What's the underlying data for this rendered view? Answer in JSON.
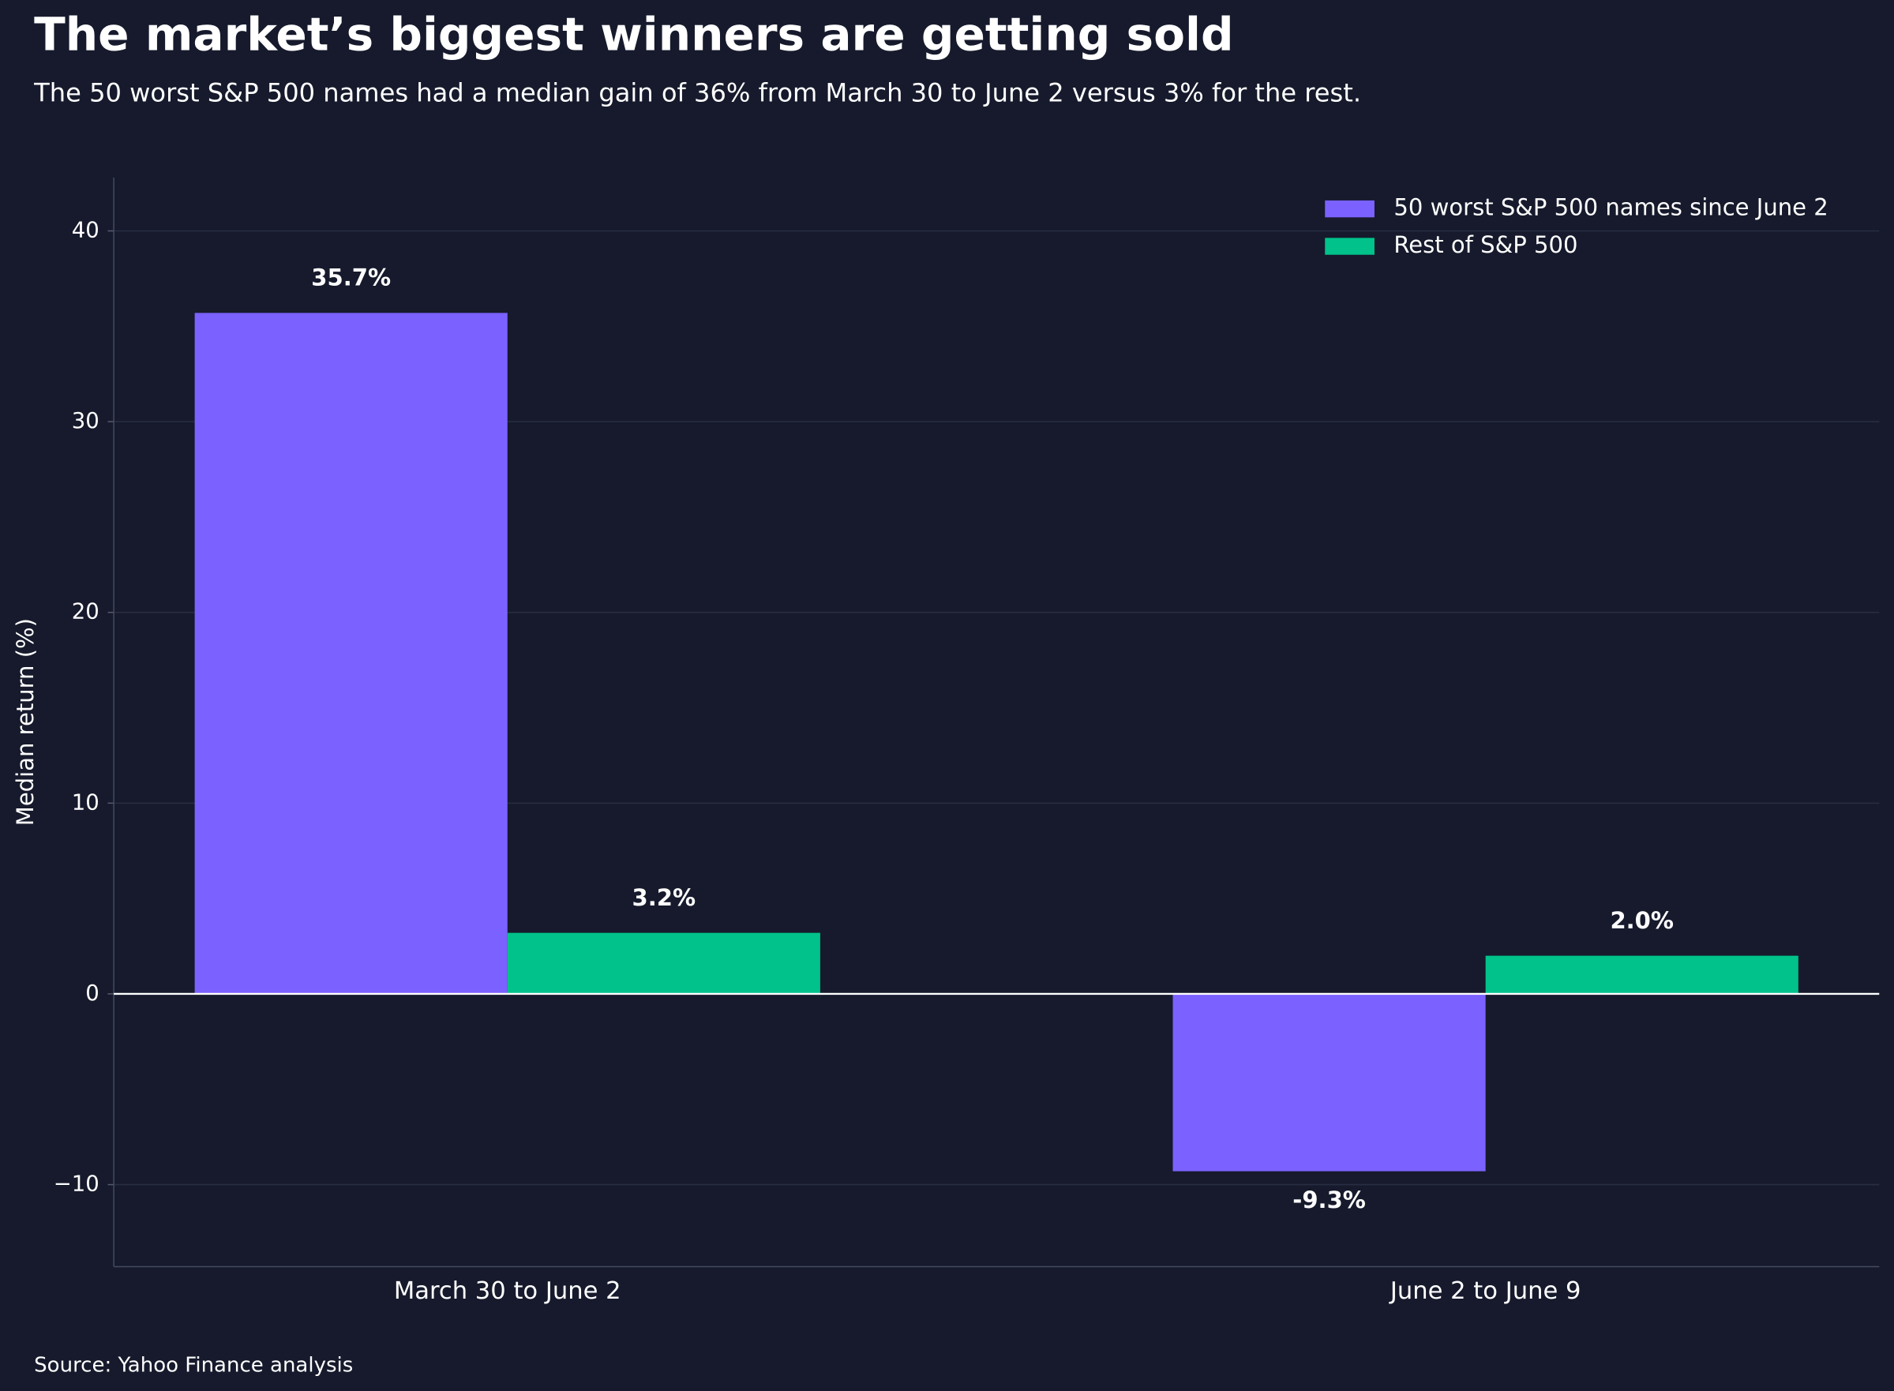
{
  "chart_data": {
    "type": "bar",
    "title": "The market’s biggest winners are getting sold",
    "subtitle": "The 50 worst S&P 500 names had a median gain of 36% from March 30 to June 2 versus 3% for the rest.",
    "y_label": "Median return (%)",
    "source": "Source: Yahoo Finance analysis",
    "categories": [
      "March 30 to June 2",
      "June 2 to June 9"
    ],
    "series": [
      {
        "name": "50 worst S&P 500 names since June 2",
        "color": "#7b61ff",
        "values": [
          35.7,
          -9.3
        ],
        "value_labels": [
          "35.7%",
          "-9.3%"
        ]
      },
      {
        "name": "Rest of S&P 500",
        "color": "#00c28a",
        "values": [
          3.2,
          2.0
        ],
        "value_labels": [
          "3.2%",
          "2.0%"
        ]
      }
    ],
    "ylim": [
      -14.3,
      42.8
    ],
    "yticks": [
      {
        "value": -10,
        "label": "−10"
      },
      0,
      10,
      20,
      30,
      40
    ],
    "grid": true,
    "legend": "upper right"
  }
}
